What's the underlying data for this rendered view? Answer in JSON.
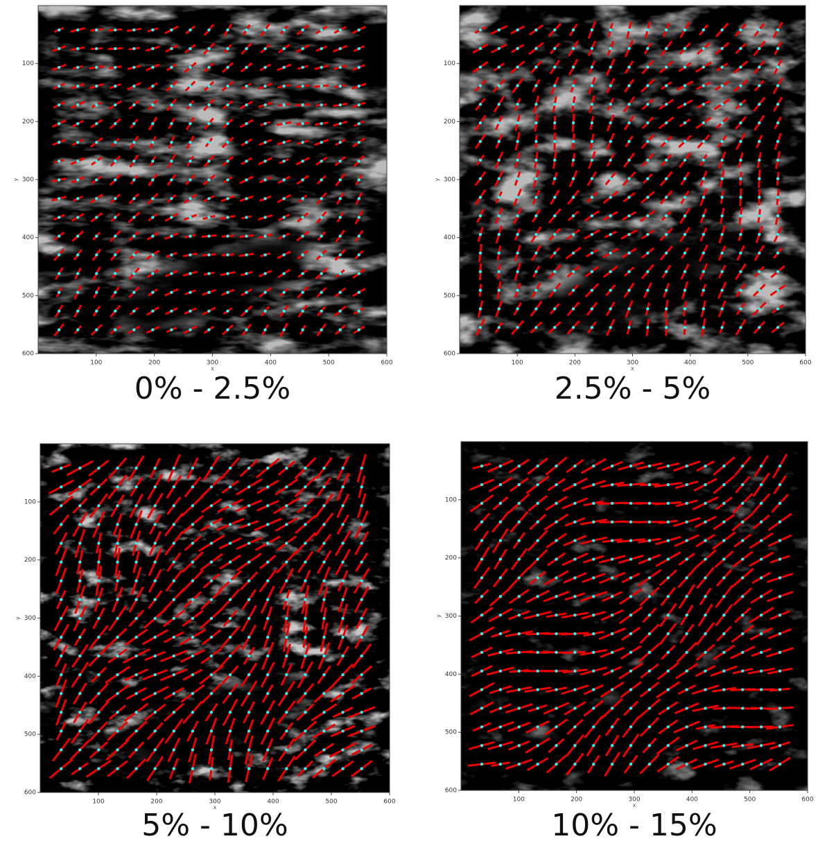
{
  "chart_data": [
    {
      "type": "image",
      "caption": "0% - 2.5%",
      "x_label": "x",
      "y_label": "y",
      "xlim": [
        0,
        600
      ],
      "ylim": [
        600,
        0
      ],
      "xticks": [
        100,
        200,
        300,
        400,
        500,
        600
      ],
      "yticks": [
        100,
        200,
        300,
        400,
        500,
        600
      ]
    },
    {
      "type": "image",
      "caption": "2.5% - 5%",
      "x_label": "x",
      "y_label": "y",
      "xlim": [
        0,
        600
      ],
      "ylim": [
        600,
        0
      ],
      "xticks": [
        100,
        200,
        300,
        400,
        500,
        600
      ],
      "yticks": [
        100,
        200,
        300,
        400,
        500,
        600
      ]
    },
    {
      "type": "image",
      "caption": "5% - 10%",
      "x_label": "x",
      "y_label": "y",
      "xlim": [
        0,
        600
      ],
      "ylim": [
        600,
        0
      ],
      "xticks": [
        100,
        200,
        300,
        400,
        500,
        600
      ],
      "yticks": [
        100,
        200,
        300,
        400,
        500,
        600
      ]
    },
    {
      "type": "image",
      "caption": "10% - 15%",
      "x_label": "x",
      "y_label": "y",
      "xlim": [
        0,
        600
      ],
      "ylim": [
        600,
        0
      ],
      "xticks": [
        100,
        200,
        300,
        400,
        500,
        600
      ],
      "yticks": [
        100,
        200,
        300,
        400,
        500,
        600
      ]
    }
  ]
}
